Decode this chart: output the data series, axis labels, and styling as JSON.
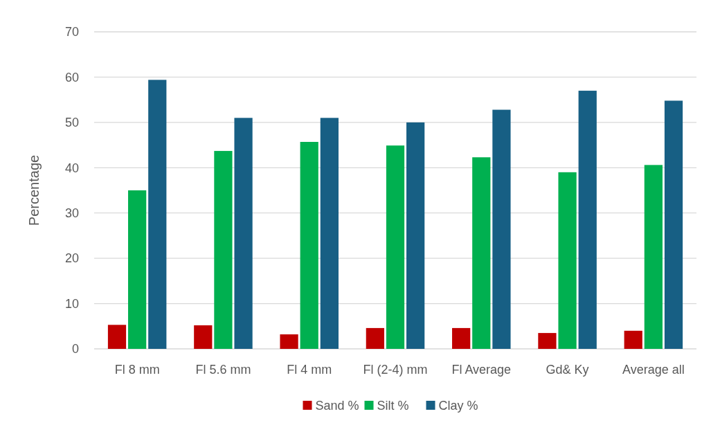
{
  "chart_data": {
    "type": "bar",
    "ylabel": "Percentage",
    "categories": [
      "Fl 8 mm",
      "Fl 5.6 mm",
      "Fl 4 mm",
      "Fl (2-4) mm",
      "Fl Average",
      "Gd& Ky",
      "Average all"
    ],
    "series": [
      {
        "name": "Sand %",
        "color": "#c00000",
        "values": [
          5.3,
          5.2,
          3.2,
          4.6,
          4.6,
          3.5,
          4.0
        ]
      },
      {
        "name": "Silt %",
        "color": "#00b050",
        "values": [
          35.0,
          43.7,
          45.7,
          44.9,
          42.3,
          39.0,
          40.6
        ]
      },
      {
        "name": "Clay %",
        "color": "#175f84",
        "values": [
          59.4,
          51.0,
          51.0,
          50.0,
          52.8,
          57.0,
          54.8
        ]
      }
    ],
    "ylim": [
      0,
      70
    ],
    "yticks": [
      0,
      10,
      20,
      30,
      40,
      50,
      60,
      70
    ],
    "grid": "y",
    "legend": "bottom"
  }
}
